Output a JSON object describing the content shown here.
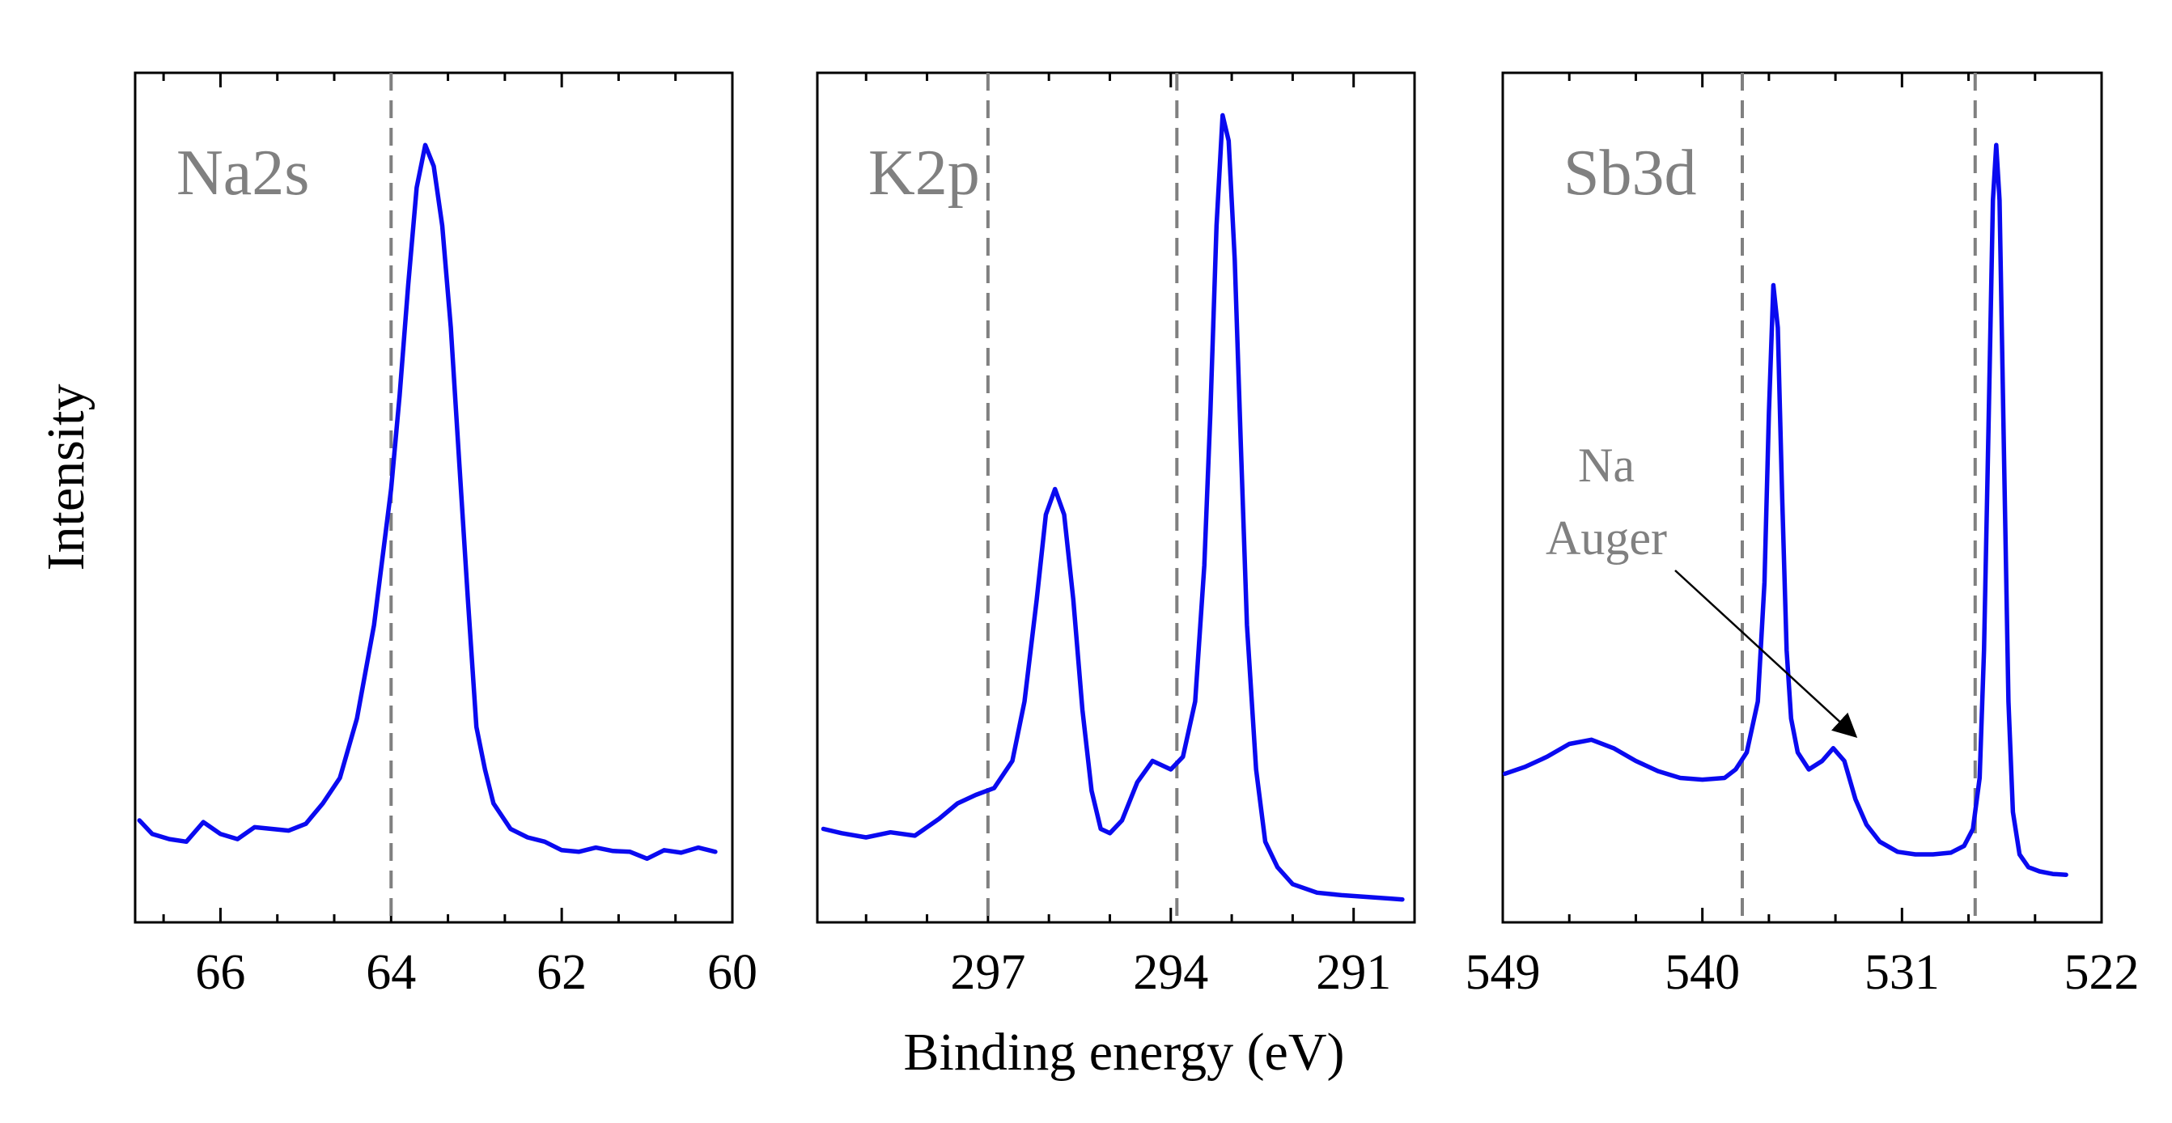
{
  "chart_data": [
    {
      "type": "line",
      "ylabel": "Intensity",
      "xlabel": "",
      "xlim": [
        67.0,
        60.0
      ],
      "ylim": [
        0,
        1
      ],
      "x_reversed": true,
      "xticks": [
        66,
        64,
        62,
        60
      ],
      "annotations": [
        {
          "text": "Na2s"
        }
      ],
      "reference_lines": [
        64.0
      ],
      "series": [
        {
          "points": [
            [
              66.95,
              0.12
            ],
            [
              66.8,
              0.104
            ],
            [
              66.6,
              0.098
            ],
            [
              66.4,
              0.095
            ],
            [
              66.2,
              0.118
            ],
            [
              66.0,
              0.104
            ],
            [
              65.8,
              0.098
            ],
            [
              65.6,
              0.112
            ],
            [
              65.4,
              0.11
            ],
            [
              65.2,
              0.108
            ],
            [
              65.0,
              0.116
            ],
            [
              64.8,
              0.14
            ],
            [
              64.6,
              0.17
            ],
            [
              64.4,
              0.24
            ],
            [
              64.2,
              0.35
            ],
            [
              64.0,
              0.51
            ],
            [
              63.9,
              0.62
            ],
            [
              63.8,
              0.75
            ],
            [
              63.7,
              0.865
            ],
            [
              63.6,
              0.915
            ],
            [
              63.5,
              0.89
            ],
            [
              63.4,
              0.82
            ],
            [
              63.3,
              0.7
            ],
            [
              63.2,
              0.54
            ],
            [
              63.1,
              0.38
            ],
            [
              63.0,
              0.23
            ],
            [
              62.9,
              0.18
            ],
            [
              62.8,
              0.14
            ],
            [
              62.6,
              0.11
            ],
            [
              62.4,
              0.1
            ],
            [
              62.2,
              0.095
            ],
            [
              62.0,
              0.085
            ],
            [
              61.8,
              0.083
            ],
            [
              61.6,
              0.088
            ],
            [
              61.4,
              0.084
            ],
            [
              61.2,
              0.083
            ],
            [
              61.0,
              0.075
            ],
            [
              60.8,
              0.085
            ],
            [
              60.6,
              0.082
            ],
            [
              60.4,
              0.088
            ],
            [
              60.2,
              0.083
            ]
          ]
        }
      ]
    },
    {
      "type": "line",
      "ylabel": "",
      "xlabel": "Binding energy (eV)",
      "xlim": [
        299.8,
        290.0
      ],
      "ylim": [
        0,
        1
      ],
      "x_reversed": true,
      "xticks": [
        297,
        294,
        291
      ],
      "annotations": [
        {
          "text": "K2p"
        }
      ],
      "reference_lines": [
        297.0,
        293.9
      ],
      "series": [
        {
          "points": [
            [
              299.7,
              0.11
            ],
            [
              299.4,
              0.105
            ],
            [
              299.0,
              0.1
            ],
            [
              298.6,
              0.106
            ],
            [
              298.2,
              0.102
            ],
            [
              297.8,
              0.122
            ],
            [
              297.5,
              0.14
            ],
            [
              297.2,
              0.15
            ],
            [
              296.9,
              0.158
            ],
            [
              296.6,
              0.19
            ],
            [
              296.4,
              0.26
            ],
            [
              296.2,
              0.38
            ],
            [
              296.05,
              0.48
            ],
            [
              295.9,
              0.51
            ],
            [
              295.75,
              0.48
            ],
            [
              295.6,
              0.38
            ],
            [
              295.45,
              0.25
            ],
            [
              295.3,
              0.155
            ],
            [
              295.15,
              0.11
            ],
            [
              295.0,
              0.105
            ],
            [
              294.8,
              0.12
            ],
            [
              294.55,
              0.165
            ],
            [
              294.3,
              0.19
            ],
            [
              294.0,
              0.18
            ],
            [
              293.8,
              0.195
            ],
            [
              293.6,
              0.26
            ],
            [
              293.45,
              0.42
            ],
            [
              293.35,
              0.6
            ],
            [
              293.25,
              0.82
            ],
            [
              293.15,
              0.95
            ],
            [
              293.05,
              0.92
            ],
            [
              292.95,
              0.78
            ],
            [
              292.85,
              0.56
            ],
            [
              292.75,
              0.35
            ],
            [
              292.6,
              0.18
            ],
            [
              292.45,
              0.095
            ],
            [
              292.25,
              0.065
            ],
            [
              292.0,
              0.045
            ],
            [
              291.6,
              0.035
            ],
            [
              291.2,
              0.032
            ],
            [
              290.8,
              0.03
            ],
            [
              290.4,
              0.028
            ],
            [
              290.2,
              0.027
            ]
          ]
        }
      ]
    },
    {
      "type": "line",
      "ylabel": "",
      "xlabel": "",
      "xlim": [
        549.0,
        522.0
      ],
      "ylim": [
        0,
        1
      ],
      "x_reversed": true,
      "xticks": [
        549,
        540,
        531,
        522
      ],
      "annotations": [
        {
          "text": "Sb3d"
        },
        {
          "text_lines": [
            "Na",
            "Auger"
          ],
          "arrow_to_x": 532.8
        }
      ],
      "reference_lines": [
        538.2,
        527.7
      ],
      "series": [
        {
          "points": [
            [
              548.9,
              0.175
            ],
            [
              548.0,
              0.183
            ],
            [
              547.0,
              0.195
            ],
            [
              546.0,
              0.21
            ],
            [
              545.0,
              0.215
            ],
            [
              544.0,
              0.205
            ],
            [
              543.0,
              0.19
            ],
            [
              542.0,
              0.178
            ],
            [
              541.0,
              0.17
            ],
            [
              540.0,
              0.168
            ],
            [
              539.0,
              0.17
            ],
            [
              538.5,
              0.18
            ],
            [
              538.0,
              0.2
            ],
            [
              537.5,
              0.26
            ],
            [
              537.2,
              0.4
            ],
            [
              537.0,
              0.6
            ],
            [
              536.8,
              0.75
            ],
            [
              536.6,
              0.7
            ],
            [
              536.4,
              0.5
            ],
            [
              536.2,
              0.32
            ],
            [
              536.0,
              0.24
            ],
            [
              535.7,
              0.2
            ],
            [
              535.2,
              0.18
            ],
            [
              534.6,
              0.19
            ],
            [
              534.1,
              0.205
            ],
            [
              533.6,
              0.19
            ],
            [
              533.1,
              0.145
            ],
            [
              532.6,
              0.115
            ],
            [
              532.0,
              0.095
            ],
            [
              531.2,
              0.083
            ],
            [
              530.4,
              0.08
            ],
            [
              529.6,
              0.08
            ],
            [
              528.8,
              0.082
            ],
            [
              528.2,
              0.09
            ],
            [
              527.8,
              0.11
            ],
            [
              527.5,
              0.17
            ],
            [
              527.3,
              0.32
            ],
            [
              527.1,
              0.58
            ],
            [
              526.9,
              0.85
            ],
            [
              526.75,
              0.915
            ],
            [
              526.6,
              0.85
            ],
            [
              526.4,
              0.55
            ],
            [
              526.2,
              0.26
            ],
            [
              526.0,
              0.13
            ],
            [
              525.7,
              0.08
            ],
            [
              525.3,
              0.065
            ],
            [
              524.8,
              0.06
            ],
            [
              524.2,
              0.057
            ],
            [
              523.6,
              0.056
            ]
          ]
        }
      ]
    }
  ]
}
